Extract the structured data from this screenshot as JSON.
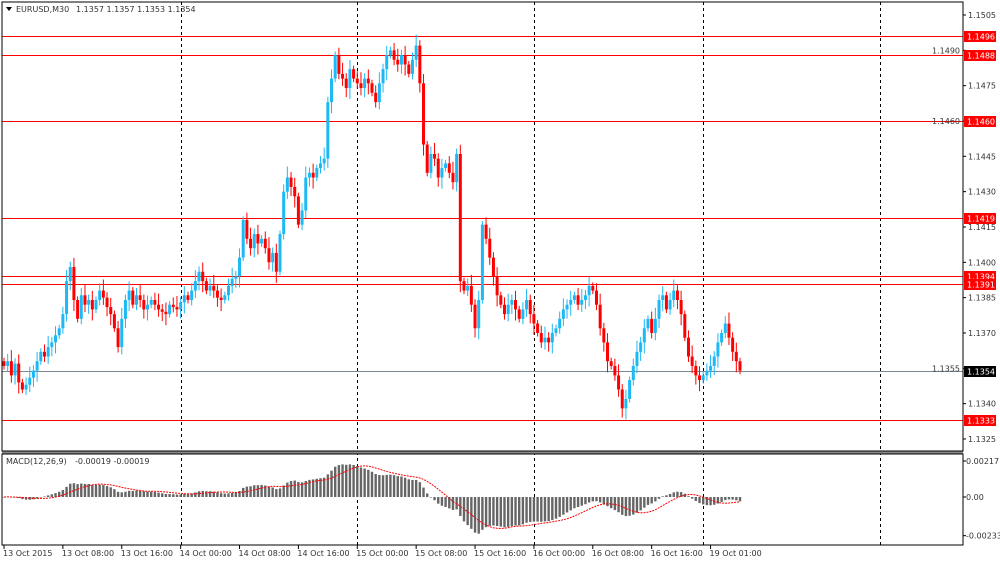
{
  "header": {
    "triangle_icon": "triangle-down-icon",
    "symbol": "EURUSD,M30",
    "ohlc_text": "1.1357 1.1357 1.1353 1.1354"
  },
  "macd_header": {
    "label": "MACD(12,26,9)",
    "values": "-0.00019 -0.00019"
  },
  "colors": {
    "bull": "#1CB9F5",
    "bear": "#FF0000",
    "doji": "#000000",
    "level_line": "#FF0000",
    "current_price_line": "#778899",
    "macd_histogram": "#666666",
    "macd_signal": "#FF0000"
  },
  "chart_data": {
    "type": "candlestick",
    "timeframe": "M30",
    "price_axis": {
      "ylim": [
        1.132,
        1.151
      ],
      "ticks": [
        "1.1505",
        "1.1490",
        "1.1475",
        "1.1460",
        "1.1445",
        "1.1430",
        "1.1415",
        "1.1400",
        "1.1385",
        "1.1370",
        "1.1355",
        "1.1340",
        "1.1325"
      ]
    },
    "time_labels": [
      {
        "bar": 0,
        "label": "13 Oct 2015"
      },
      {
        "bar": 16,
        "label": "13 Oct 08:00"
      },
      {
        "bar": 32,
        "label": "13 Oct 16:00"
      },
      {
        "bar": 48,
        "label": "14 Oct 00:00"
      },
      {
        "bar": 64,
        "label": "14 Oct 08:00"
      },
      {
        "bar": 80,
        "label": "14 Oct 16:00"
      },
      {
        "bar": 96,
        "label": "15 Oct 00:00"
      },
      {
        "bar": 112,
        "label": "15 Oct 08:00"
      },
      {
        "bar": 128,
        "label": "15 Oct 16:00"
      },
      {
        "bar": 144,
        "label": "16 Oct 00:00"
      },
      {
        "bar": 160,
        "label": "16 Oct 08:00"
      },
      {
        "bar": 176,
        "label": "16 Oct 16:00"
      },
      {
        "bar": 192,
        "label": "19 Oct 01:00"
      }
    ],
    "period_separators_at_bar": [
      48,
      96,
      144,
      190,
      238
    ],
    "close": [
      1.1356,
      1.1358,
      1.1352,
      1.1357,
      1.1349,
      1.1346,
      1.1348,
      1.1351,
      1.1354,
      1.1358,
      1.1362,
      1.136,
      1.1364,
      1.1366,
      1.1369,
      1.1372,
      1.1378,
      1.1392,
      1.1398,
      1.1384,
      1.1376,
      1.1386,
      1.1382,
      1.1384,
      1.138,
      1.1384,
      1.1388,
      1.1385,
      1.1381,
      1.1378,
      1.1372,
      1.1364,
      1.1376,
      1.1384,
      1.1388,
      1.1382,
      1.1386,
      1.1384,
      1.138,
      1.1382,
      1.1384,
      1.1382,
      1.138,
      1.1379,
      1.1378,
      1.1382,
      1.1381,
      1.138,
      1.1383,
      1.1386,
      1.1384,
      1.1388,
      1.1392,
      1.1396,
      1.1392,
      1.1388,
      1.139,
      1.1388,
      1.1385,
      1.1384,
      1.1386,
      1.139,
      1.1393,
      1.1394,
      1.1402,
      1.1418,
      1.141,
      1.1406,
      1.1412,
      1.1408,
      1.141,
      1.1406,
      1.14,
      1.1404,
      1.1396,
      1.1412,
      1.143,
      1.1436,
      1.1432,
      1.1428,
      1.1416,
      1.1422,
      1.1436,
      1.1438,
      1.1436,
      1.144,
      1.1442,
      1.1444,
      1.1468,
      1.1478,
      1.1488,
      1.148,
      1.1478,
      1.1474,
      1.1482,
      1.1478,
      1.1476,
      1.1474,
      1.1478,
      1.1476,
      1.1472,
      1.1468,
      1.1476,
      1.1482,
      1.1488,
      1.149,
      1.1486,
      1.1484,
      1.1488,
      1.1484,
      1.148,
      1.1486,
      1.1492,
      1.1476,
      1.145,
      1.1438,
      1.1446,
      1.1444,
      1.1436,
      1.144,
      1.1442,
      1.1438,
      1.1434,
      1.1446,
      1.1392,
      1.1388,
      1.139,
      1.1382,
      1.1372,
      1.1384,
      1.1416,
      1.141,
      1.1402,
      1.1394,
      1.1386,
      1.1382,
      1.1378,
      1.1382,
      1.1384,
      1.138,
      1.1376,
      1.138,
      1.1384,
      1.1378,
      1.1374,
      1.137,
      1.1366,
      1.1368,
      1.1366,
      1.137,
      1.1372,
      1.1376,
      1.138,
      1.1382,
      1.1384,
      1.1386,
      1.1382,
      1.1384,
      1.1386,
      1.139,
      1.1388,
      1.1382,
      1.1372,
      1.1366,
      1.1358,
      1.1356,
      1.1352,
      1.1346,
      1.1338,
      1.1342,
      1.135,
      1.1356,
      1.1362,
      1.1366,
      1.1372,
      1.1376,
      1.137,
      1.1376,
      1.1384,
      1.1386,
      1.138,
      1.1384,
      1.1388,
      1.1384,
      1.1378,
      1.1368,
      1.136,
      1.1356,
      1.1352,
      1.135,
      1.1352,
      1.1354,
      1.1356,
      1.136,
      1.1366,
      1.137,
      1.1374,
      1.1368,
      1.1362,
      1.1358,
      1.1354
    ],
    "horizontal_levels": [
      "1.1496",
      "1.1488",
      "1.1460",
      "1.1419",
      "1.1394",
      "1.1391",
      "1.1333"
    ],
    "current_price": "1.1354",
    "indicator": {
      "name": "MACD",
      "params": [
        12,
        26,
        9
      ],
      "ylim": [
        -0.00233,
        0.00217
      ],
      "ticks": [
        "0.00217",
        "0.00",
        "-0.00233"
      ],
      "main_last": -0.00019,
      "signal_last": -0.00019
    }
  }
}
